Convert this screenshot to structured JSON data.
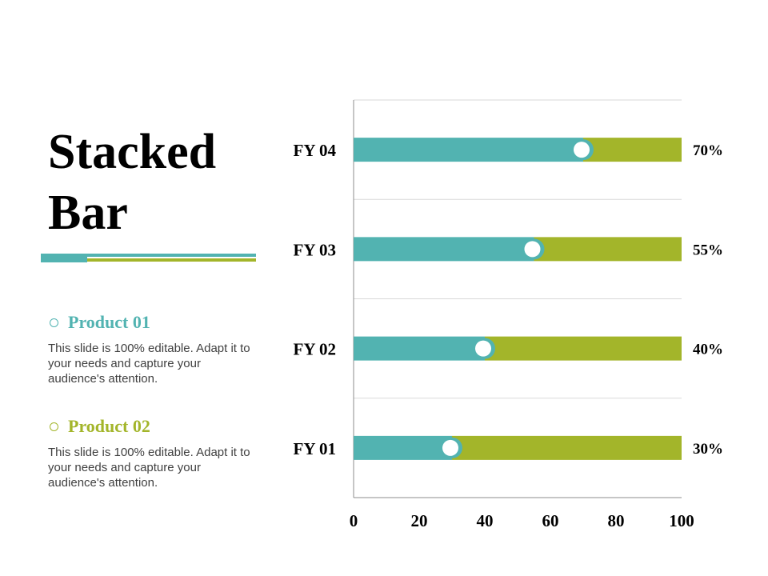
{
  "title": {
    "line1": "Stacked",
    "line2": "Bar"
  },
  "colors": {
    "teal": "#52b3b1",
    "olive": "#a3b52a",
    "grid": "#d9d9d9",
    "axis": "#8c8c8c",
    "text": "#000000"
  },
  "legend": [
    {
      "name": "Product 01",
      "color": "#52b3b1",
      "description": "This slide is 100% editable. Adapt it to your needs and capture your audience's attention."
    },
    {
      "name": "Product 02",
      "color": "#a3b52a",
      "description": "This slide is 100% editable. Adapt it to your needs and capture your audience's attention."
    }
  ],
  "chart_data": {
    "type": "bar",
    "orientation": "horizontal",
    "stacked": true,
    "title": "Stacked Bar",
    "categories": [
      "FY 04",
      "FY 03",
      "FY 02",
      "FY 01"
    ],
    "series": [
      {
        "name": "Product 01",
        "values": [
          70,
          55,
          40,
          30
        ]
      },
      {
        "name": "Product 02",
        "values": [
          30,
          45,
          60,
          70
        ]
      }
    ],
    "data_labels": [
      "70%",
      "55%",
      "40%",
      "30%"
    ],
    "xlim": [
      0,
      100
    ],
    "xticks": [
      0,
      20,
      40,
      60,
      80,
      100
    ],
    "xlabel": "",
    "ylabel": "",
    "grid": true,
    "legend_position": "left"
  }
}
